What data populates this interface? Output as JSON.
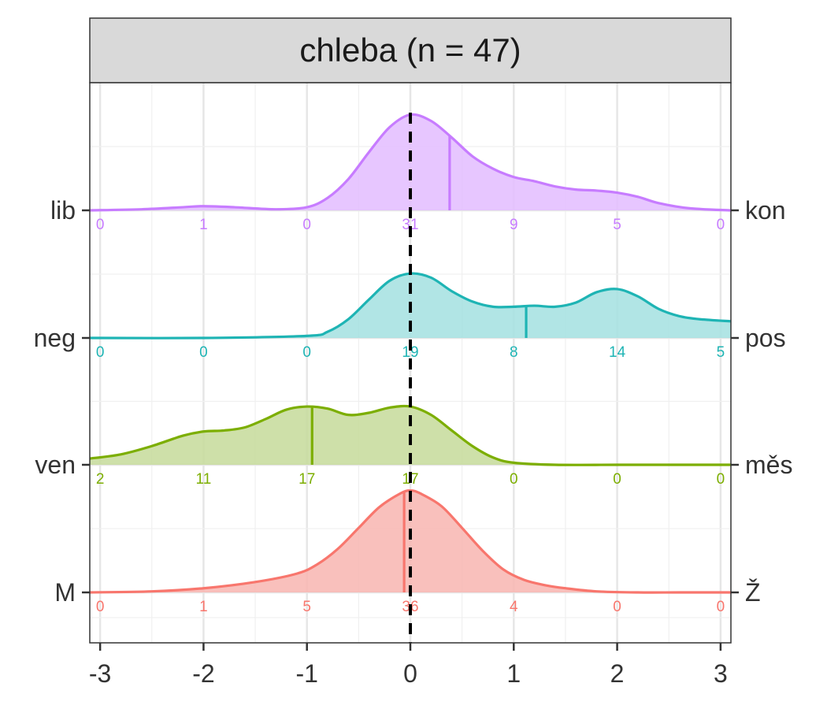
{
  "chart_data": {
    "type": "ridgeline",
    "title": "chleba (n = 47)",
    "xlabel": "",
    "ylabel": "",
    "xlim": [
      -3.1,
      3.1
    ],
    "x_ticks": [
      "-3",
      "-2",
      "-1",
      "0",
      "1",
      "2",
      "3"
    ],
    "x_tick_values": [
      -3,
      -2,
      -1,
      0,
      1,
      2,
      3
    ],
    "reference_line_x": 0,
    "grid": true,
    "count_positions": [
      -3,
      -2,
      -1,
      0,
      1,
      2,
      3
    ],
    "series": [
      {
        "left_label": "M",
        "right_label": "Ž",
        "color": "#F8766D",
        "fill": "#F8B5B0",
        "mean": -0.06,
        "counts": [
          "0",
          "1",
          "5",
          "36",
          "4",
          "0",
          "0"
        ],
        "density_x": [
          -3.1,
          -2.5,
          -2.0,
          -1.5,
          -1.1,
          -0.9,
          -0.7,
          -0.5,
          -0.3,
          -0.1,
          0.0,
          0.1,
          0.3,
          0.5,
          0.7,
          0.9,
          1.1,
          1.3,
          1.5,
          1.8,
          2.2,
          2.6,
          3.1
        ],
        "density_y": [
          0.0,
          0.01,
          0.04,
          0.1,
          0.18,
          0.27,
          0.42,
          0.62,
          0.82,
          0.95,
          0.98,
          0.95,
          0.83,
          0.62,
          0.4,
          0.22,
          0.12,
          0.07,
          0.04,
          0.01,
          0.0,
          0.0,
          0.0
        ]
      },
      {
        "left_label": "ven",
        "right_label": "měs",
        "color": "#7CAE00",
        "fill": "#C6DB9A",
        "mean": -0.95,
        "counts": [
          "2",
          "11",
          "17",
          "17",
          "0",
          "0",
          "0"
        ],
        "density_x": [
          -3.1,
          -2.8,
          -2.5,
          -2.2,
          -2.0,
          -1.8,
          -1.6,
          -1.4,
          -1.2,
          -1.0,
          -0.8,
          -0.6,
          -0.4,
          -0.2,
          0.0,
          0.2,
          0.4,
          0.6,
          0.8,
          1.0,
          1.4,
          2.0,
          2.6,
          3.1
        ],
        "density_y": [
          0.06,
          0.1,
          0.18,
          0.28,
          0.32,
          0.33,
          0.36,
          0.44,
          0.53,
          0.56,
          0.54,
          0.48,
          0.5,
          0.55,
          0.56,
          0.48,
          0.33,
          0.18,
          0.07,
          0.02,
          0.0,
          0.0,
          0.0,
          0.0
        ]
      },
      {
        "left_label": "neg",
        "right_label": "pos",
        "color": "#1EB4B4",
        "fill": "#A3E1E1",
        "mean": 1.12,
        "counts": [
          "0",
          "0",
          "0",
          "19",
          "8",
          "14",
          "5"
        ],
        "density_x": [
          -3.1,
          -2.0,
          -1.0,
          -0.8,
          -0.6,
          -0.4,
          -0.2,
          0.0,
          0.2,
          0.4,
          0.6,
          0.8,
          1.0,
          1.2,
          1.4,
          1.6,
          1.8,
          2.0,
          2.2,
          2.4,
          2.6,
          2.8,
          3.1
        ],
        "density_y": [
          0.0,
          0.0,
          0.02,
          0.06,
          0.18,
          0.37,
          0.55,
          0.62,
          0.58,
          0.45,
          0.35,
          0.3,
          0.3,
          0.31,
          0.3,
          0.34,
          0.44,
          0.47,
          0.4,
          0.28,
          0.21,
          0.18,
          0.16
        ]
      },
      {
        "left_label": "lib",
        "right_label": "kon",
        "color": "#C77CFF",
        "fill": "#E3BCFF",
        "mean": 0.38,
        "counts": [
          "0",
          "1",
          "0",
          "31",
          "9",
          "5",
          "0"
        ],
        "density_x": [
          -3.1,
          -2.6,
          -2.2,
          -2.0,
          -1.7,
          -1.3,
          -1.0,
          -0.8,
          -0.6,
          -0.4,
          -0.2,
          0.0,
          0.2,
          0.4,
          0.6,
          0.8,
          1.0,
          1.2,
          1.4,
          1.6,
          1.8,
          2.0,
          2.2,
          2.4,
          2.7,
          3.1
        ],
        "density_y": [
          0.0,
          0.01,
          0.03,
          0.04,
          0.03,
          0.01,
          0.03,
          0.12,
          0.3,
          0.56,
          0.8,
          0.92,
          0.86,
          0.7,
          0.52,
          0.4,
          0.32,
          0.28,
          0.23,
          0.2,
          0.19,
          0.17,
          0.13,
          0.07,
          0.02,
          0.0
        ]
      }
    ]
  }
}
